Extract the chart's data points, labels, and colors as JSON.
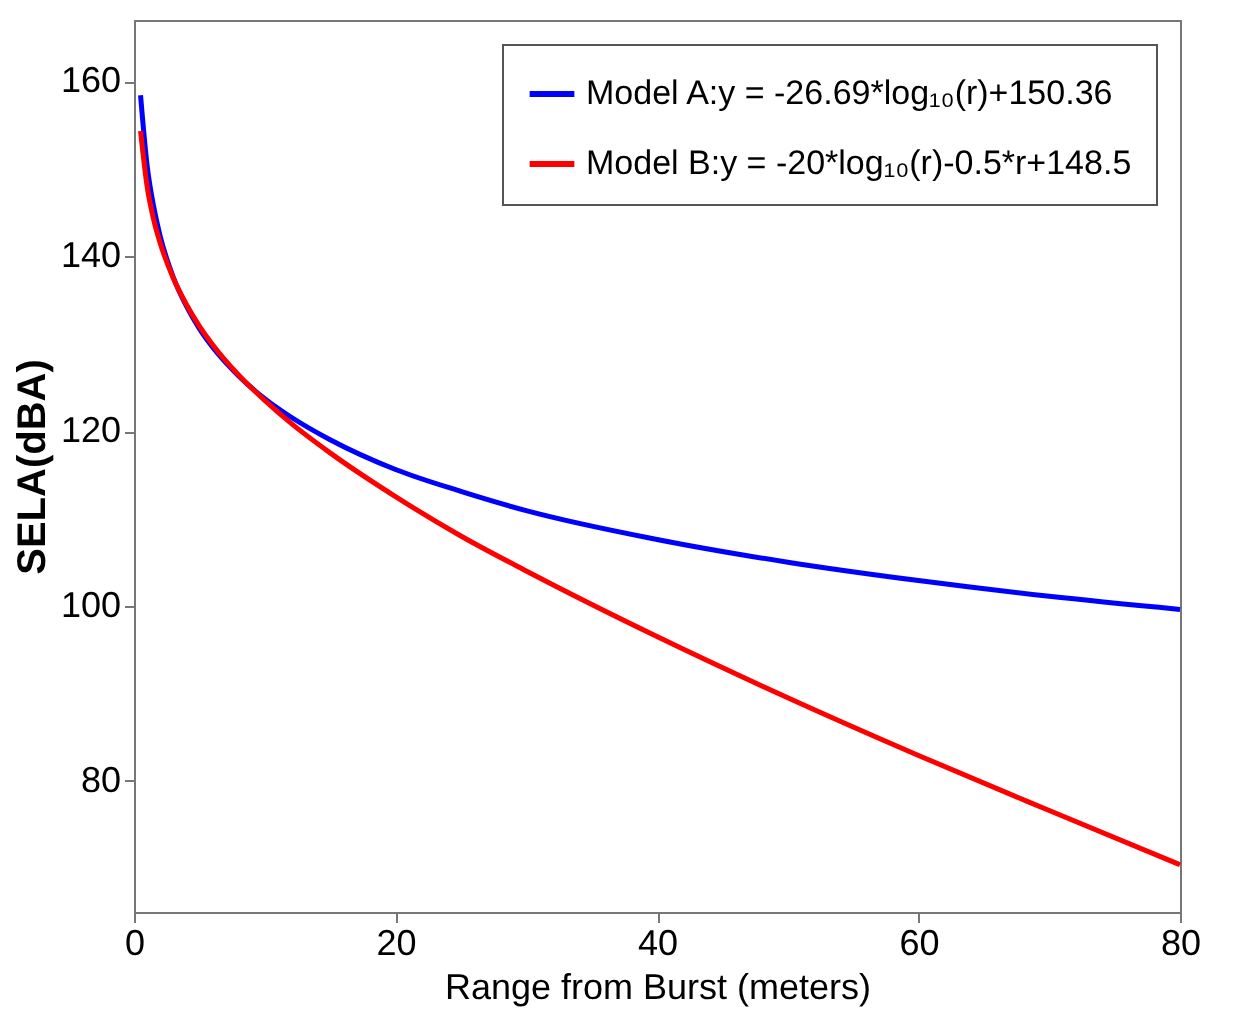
{
  "chart_data": {
    "type": "line",
    "xlabel": "Range from Burst (meters)",
    "ylabel": "SELA(dBA)",
    "x": [
      0.5,
      1,
      1.5,
      2,
      3,
      4,
      5,
      6,
      8,
      10,
      12,
      15,
      20,
      25,
      30,
      40,
      50,
      60,
      70,
      80
    ],
    "series": [
      {
        "name": "Model A:y = -26.69*log₁₀(r)+150.36",
        "color": "#0000ff",
        "values": [
          158.4,
          150.4,
          145.7,
          142.3,
          137.6,
          134.3,
          131.7,
          129.6,
          126.3,
          123.7,
          121.6,
          119.0,
          115.6,
          113.1,
          110.9,
          107.6,
          105.0,
          102.9,
          101.1,
          99.6
        ]
      },
      {
        "name": "Model B:y = -20*log₁₀(r)-0.5*r+148.5",
        "color": "#ff0000",
        "values": [
          154.3,
          148.0,
          144.2,
          141.5,
          137.5,
          134.5,
          132.0,
          129.9,
          126.4,
          123.5,
          120.9,
          117.5,
          112.5,
          108.0,
          104.0,
          96.5,
          89.5,
          82.9,
          76.6,
          70.4
        ]
      }
    ],
    "xlim": [
      0,
      80
    ],
    "xticks": [
      0,
      20,
      40,
      60,
      80
    ],
    "ylim": [
      65,
      167
    ],
    "yticks": [
      80,
      100,
      120,
      140,
      160
    ],
    "grid": false,
    "legend": "top right",
    "marker": "none",
    "line_style": "solid"
  }
}
